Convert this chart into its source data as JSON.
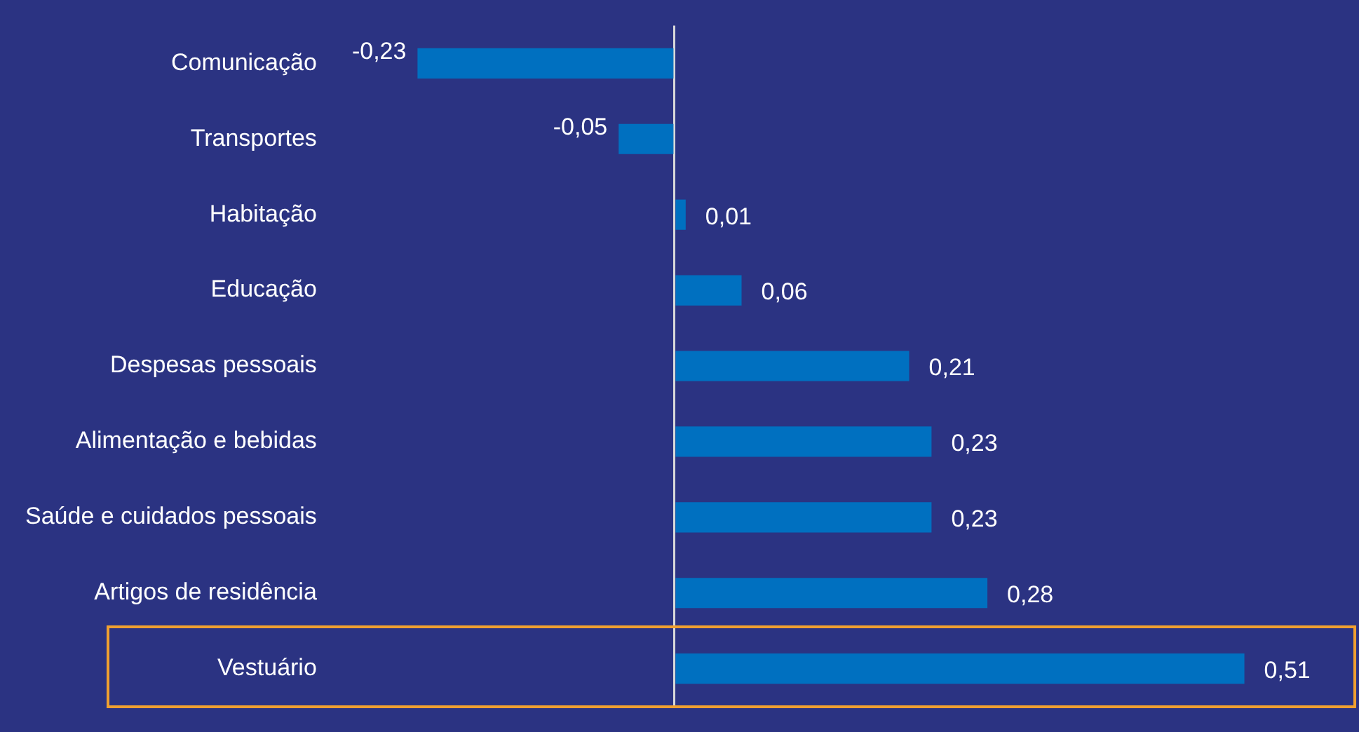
{
  "chart_data": {
    "type": "bar",
    "orientation": "horizontal",
    "categories": [
      "Comunicação",
      "Transportes",
      "Habitação",
      "Educação",
      "Despesas pessoais",
      "Alimentação e bebidas",
      "Saúde e cuidados pessoais",
      "Artigos de residência",
      "Vestuário"
    ],
    "values": [
      -0.23,
      -0.05,
      0.01,
      0.06,
      0.21,
      0.23,
      0.23,
      0.28,
      0.51
    ],
    "value_labels": [
      "-0,23",
      "-0,05",
      "0,01",
      "0,06",
      "0,21",
      "0,23",
      "0,23",
      "0,28",
      "0,51"
    ],
    "color": "#0070c0",
    "grid": false,
    "legend": false
  }
}
